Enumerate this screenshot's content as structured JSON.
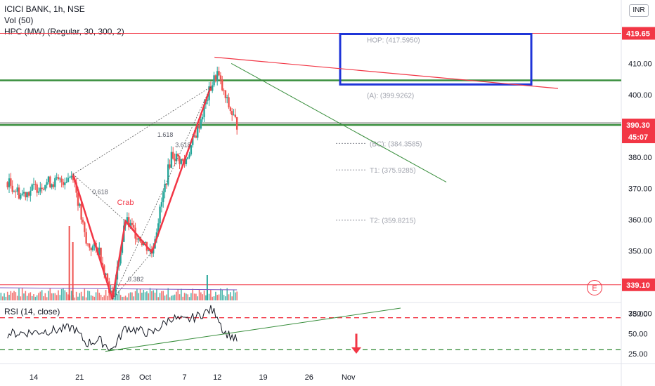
{
  "header": {
    "symbol_line": "ICICI BANK, 1h, NSE",
    "volume_line": "Vol (50)",
    "indicator_line": "HPC (MW) (Regular, 30, 300, 2)",
    "currency": "INR"
  },
  "rsi": {
    "label": "RSI (14, close)"
  },
  "earnings_badge": "E",
  "chart_data": [
    {
      "type": "candlestick",
      "x_tick_labels": [
        "14",
        "21",
        "28",
        "Oct",
        "7",
        "12",
        "19",
        "26",
        "Nov"
      ],
      "y_tick_labels": [
        "330.00",
        "340.00",
        "350.00",
        "360.00",
        "370.00",
        "380.00",
        "400.00",
        "410.00"
      ],
      "ylim": [
        327,
        423
      ],
      "price_tags": [
        {
          "label": "419.65",
          "value": 419.65,
          "color": "#f23645"
        },
        {
          "label": "390.30",
          "value": 390.3,
          "color": "#f23645"
        },
        {
          "label": "45:07",
          "value": 388.2,
          "color": "#f23645"
        },
        {
          "label": "339.10",
          "value": 339.1,
          "color": "#f23645"
        }
      ],
      "horizontal_lines": [
        {
          "value": 419.65,
          "color": "#f23645"
        },
        {
          "value": 404.6,
          "color": "#388e3c"
        },
        {
          "value": 390.3,
          "color": "#388e3c"
        },
        {
          "value": 339.1,
          "color": "#f23645"
        }
      ],
      "pattern": {
        "name": "Crab",
        "points": [
          {
            "date": "Sep 20",
            "price": 374.5
          },
          {
            "date": "Sep 26",
            "price": 334.5
          },
          {
            "date": "Sep 28",
            "price": 359.5
          },
          {
            "date": "Oct 2",
            "price": 349.5
          },
          {
            "date": "Oct 11",
            "price": 402.5
          }
        ],
        "ratio_labels": [
          "0.618",
          "0.382",
          "3.618",
          "1.618"
        ]
      },
      "hpc_levels": [
        {
          "label": "HOP: (417.5950)",
          "value": 417.6
        },
        {
          "label": "(A): (399.9262)",
          "value": 399.9
        },
        {
          "label": "(BC): (384.3585)",
          "value": 384.4
        },
        {
          "label": "T1: (375.9285)",
          "value": 375.9
        },
        {
          "label": "T2: (359.8215)",
          "value": 359.8
        }
      ],
      "price_path": [
        {
          "date": "Sep 10",
          "price": 372
        },
        {
          "date": "Sep 12",
          "price": 368
        },
        {
          "date": "Sep 14",
          "price": 370
        },
        {
          "date": "Sep 16",
          "price": 372
        },
        {
          "date": "Sep 18",
          "price": 372
        },
        {
          "date": "Sep 20",
          "price": 374.5
        },
        {
          "date": "Sep 22",
          "price": 352
        },
        {
          "date": "Sep 24",
          "price": 350
        },
        {
          "date": "Sep 26",
          "price": 334.5
        },
        {
          "date": "Sep 28",
          "price": 359.5
        },
        {
          "date": "Oct 2",
          "price": 349.5
        },
        {
          "date": "Oct 5",
          "price": 381
        },
        {
          "date": "Oct 7",
          "price": 378
        },
        {
          "date": "Oct 9",
          "price": 389
        },
        {
          "date": "Oct 11",
          "price": 402.5
        },
        {
          "date": "Oct 12",
          "price": 407
        },
        {
          "date": "Oct 13",
          "price": 400
        },
        {
          "date": "Oct 14",
          "price": 395
        },
        {
          "date": "Oct 15",
          "price": 390.3
        }
      ]
    },
    {
      "type": "line",
      "name": "RSI (14, close)",
      "y_tick_labels": [
        "75.00",
        "50.00",
        "25.00"
      ],
      "ylim": [
        18,
        88
      ],
      "levels": [
        {
          "value": 70,
          "color": "#f23645"
        },
        {
          "value": 30,
          "color": "#388e3c"
        }
      ],
      "values": [
        {
          "date": "Sep 10",
          "value": 50
        },
        {
          "date": "Sep 14",
          "value": 52
        },
        {
          "date": "Sep 18",
          "value": 55
        },
        {
          "date": "Sep 20",
          "value": 58
        },
        {
          "date": "Sep 22",
          "value": 38
        },
        {
          "date": "Sep 24",
          "value": 42
        },
        {
          "date": "Sep 26",
          "value": 30
        },
        {
          "date": "Sep 28",
          "value": 58
        },
        {
          "date": "Oct 2",
          "value": 50
        },
        {
          "date": "Oct 5",
          "value": 70
        },
        {
          "date": "Oct 7",
          "value": 66
        },
        {
          "date": "Oct 9",
          "value": 72
        },
        {
          "date": "Oct 11",
          "value": 80
        },
        {
          "date": "Oct 12",
          "value": 74
        },
        {
          "date": "Oct 13",
          "value": 52
        },
        {
          "date": "Oct 14",
          "value": 48
        },
        {
          "date": "Oct 15",
          "value": 42
        }
      ]
    }
  ]
}
